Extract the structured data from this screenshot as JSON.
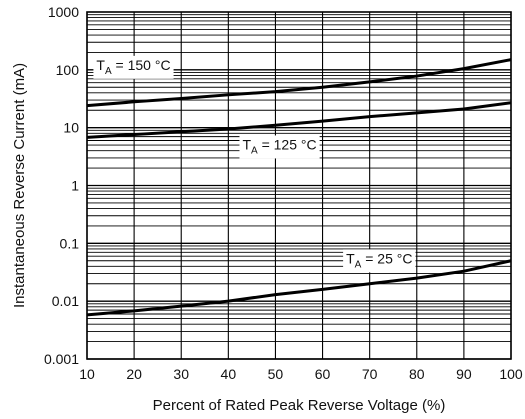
{
  "chart_data": {
    "type": "line",
    "title": "",
    "xlabel": "Percent of Rated Peak Reverse Voltage (%)",
    "ylabel": "Instantaneous Reverse Current (mA)",
    "xlim": [
      10,
      100
    ],
    "ylim": [
      0.001,
      1000
    ],
    "yscale": "log",
    "grid": true,
    "x_ticks": [
      "10",
      "20",
      "30",
      "40",
      "50",
      "60",
      "70",
      "80",
      "90",
      "100"
    ],
    "y_ticks": [
      "0.001",
      "0.01",
      "0.1",
      "1",
      "10",
      "100",
      "1000"
    ],
    "series": [
      {
        "name": "TA = 150 °C",
        "label": {
          "main": "T",
          "sub": "A",
          "rest": " = 150 °C",
          "x": 12,
          "y": 100
        },
        "x": [
          10,
          20,
          30,
          40,
          50,
          60,
          70,
          80,
          90,
          100
        ],
        "y": [
          24,
          28,
          32,
          37,
          42,
          50,
          62,
          78,
          105,
          150
        ]
      },
      {
        "name": "TA = 125 °C",
        "label": {
          "main": "T",
          "sub": "A",
          "rest": " = 125 °C",
          "x": 43,
          "y": 4.2
        },
        "x": [
          10,
          20,
          30,
          40,
          50,
          60,
          70,
          80,
          90,
          100
        ],
        "y": [
          6.8,
          7.6,
          8.5,
          9.5,
          11,
          13,
          15.5,
          18,
          21,
          27
        ]
      },
      {
        "name": "TA = 25 °C",
        "label": {
          "main": "T",
          "sub": "A",
          "rest": " = 25 °C",
          "x": 65,
          "y": 0.045
        },
        "x": [
          10,
          20,
          30,
          40,
          50,
          60,
          70,
          80,
          90,
          100
        ],
        "y": [
          0.0058,
          0.0068,
          0.0082,
          0.01,
          0.013,
          0.016,
          0.02,
          0.025,
          0.033,
          0.05
        ]
      }
    ]
  }
}
